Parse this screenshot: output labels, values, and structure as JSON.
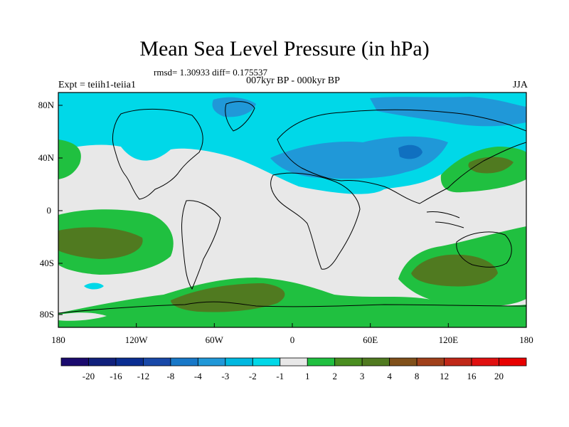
{
  "title": "Mean Sea Level Pressure (in hPa)",
  "stats": "rmsd= 1.30933  diff= 0.175537",
  "experiment": "Expt = teiih1-teiia1",
  "period": "007kyr BP - 000kyr BP",
  "season": "JJA",
  "colors": {
    "background_land_sea": "#e8e8e8",
    "cyan": "#00d8e8",
    "light_blue": "#00b8e0",
    "mid_blue": "#2098d8",
    "dark_blue": "#1070c0",
    "green": "#20c040",
    "olive": "#507a20",
    "brown": "#80501a"
  },
  "map": {
    "lon_labels": [
      "180",
      "120W",
      "60W",
      "0",
      "60E",
      "120E",
      "180"
    ],
    "lat_labels": [
      "80N",
      "40N",
      "0",
      "40S",
      "80S"
    ]
  },
  "colorbar": {
    "labels": [
      "-20",
      "-16",
      "-12",
      "-8",
      "-4",
      "-3",
      "-2",
      "-1",
      "1",
      "2",
      "3",
      "4",
      "8",
      "12",
      "16",
      "20"
    ],
    "colors": [
      "#1a0a6e",
      "#10207c",
      "#0a2e92",
      "#1848a8",
      "#1878c8",
      "#2098d8",
      "#00b8e0",
      "#00d8e8",
      "#e8e8e8",
      "#20c040",
      "#4a8e20",
      "#507a20",
      "#80501a",
      "#a0401a",
      "#c02818",
      "#e01010",
      "#e80000"
    ]
  }
}
